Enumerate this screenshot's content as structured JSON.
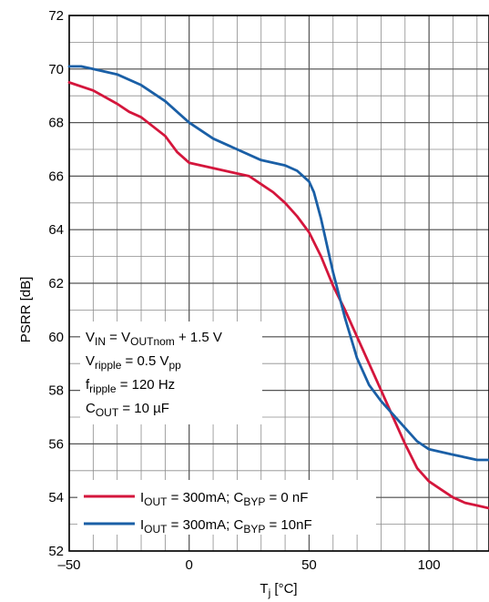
{
  "chart_data": {
    "type": "line",
    "xlabel": {
      "base": "T",
      "sub": "j",
      "rest": " [°C]"
    },
    "ylabel": "PSRR [dB]",
    "xlim": [
      -50,
      125
    ],
    "ylim": [
      52,
      72
    ],
    "x_ticks": [
      -50,
      0,
      50,
      100
    ],
    "x_tick_labels": [
      "–50",
      "0",
      "50",
      "100"
    ],
    "y_ticks": [
      52,
      54,
      56,
      58,
      60,
      62,
      64,
      66,
      68,
      70,
      72
    ],
    "x_minor_step": 10,
    "y_minor_step": 1,
    "grid": true,
    "conditions": [
      [
        {
          "t": "V"
        },
        {
          "t": "IN",
          "sub": true
        },
        {
          "t": " = V"
        },
        {
          "t": "OUTnom",
          "sub": true
        },
        {
          "t": " + 1.5 V"
        }
      ],
      [
        {
          "t": "V"
        },
        {
          "t": "ripple",
          "sub": true
        },
        {
          "t": " = 0.5 V"
        },
        {
          "t": "pp",
          "sub": true
        }
      ],
      [
        {
          "t": "f"
        },
        {
          "t": "ripple",
          "sub": true
        },
        {
          "t": " = 120 Hz"
        }
      ],
      [
        {
          "t": "C"
        },
        {
          "t": "OUT",
          "sub": true
        },
        {
          "t": " = 10 µF"
        }
      ]
    ],
    "series": [
      {
        "legend": [
          {
            "t": "I"
          },
          {
            "t": "OUT",
            "sub": true
          },
          {
            "t": " = 300mA; C"
          },
          {
            "t": "BYP",
            "sub": true
          },
          {
            "t": " = 0 nF"
          }
        ],
        "color": "#d4163c",
        "x": [
          -50,
          -40,
          -30,
          -25,
          -20,
          -10,
          -5,
          0,
          10,
          20,
          25,
          30,
          35,
          40,
          45,
          50,
          55,
          60,
          65,
          70,
          75,
          80,
          85,
          90,
          95,
          100,
          105,
          110,
          115,
          120,
          125
        ],
        "y": [
          69.5,
          69.2,
          68.7,
          68.4,
          68.2,
          67.5,
          66.9,
          66.5,
          66.3,
          66.1,
          66.0,
          65.7,
          65.4,
          65.0,
          64.5,
          63.9,
          63.0,
          61.9,
          61.0,
          60.0,
          59.0,
          58.0,
          57.0,
          56.0,
          55.1,
          54.6,
          54.3,
          54.0,
          53.8,
          53.7,
          53.6
        ]
      },
      {
        "legend": [
          {
            "t": "I"
          },
          {
            "t": "OUT",
            "sub": true
          },
          {
            "t": " = 300mA; C"
          },
          {
            "t": "BYP",
            "sub": true
          },
          {
            "t": " = 10nF"
          }
        ],
        "color": "#1a5fa6",
        "x": [
          -50,
          -45,
          -40,
          -30,
          -20,
          -10,
          0,
          10,
          20,
          30,
          40,
          45,
          50,
          52,
          55,
          58,
          60,
          65,
          70,
          75,
          80,
          85,
          90,
          95,
          100,
          105,
          110,
          115,
          120,
          125
        ],
        "y": [
          70.1,
          70.1,
          70.0,
          69.8,
          69.4,
          68.8,
          68.0,
          67.4,
          67.0,
          66.6,
          66.4,
          66.2,
          65.8,
          65.4,
          64.4,
          63.2,
          62.4,
          60.7,
          59.2,
          58.2,
          57.6,
          57.1,
          56.6,
          56.1,
          55.8,
          55.7,
          55.6,
          55.5,
          55.4,
          55.4
        ]
      }
    ]
  },
  "colors": {
    "grid": "#8c8c8c",
    "axis": "#000000"
  }
}
